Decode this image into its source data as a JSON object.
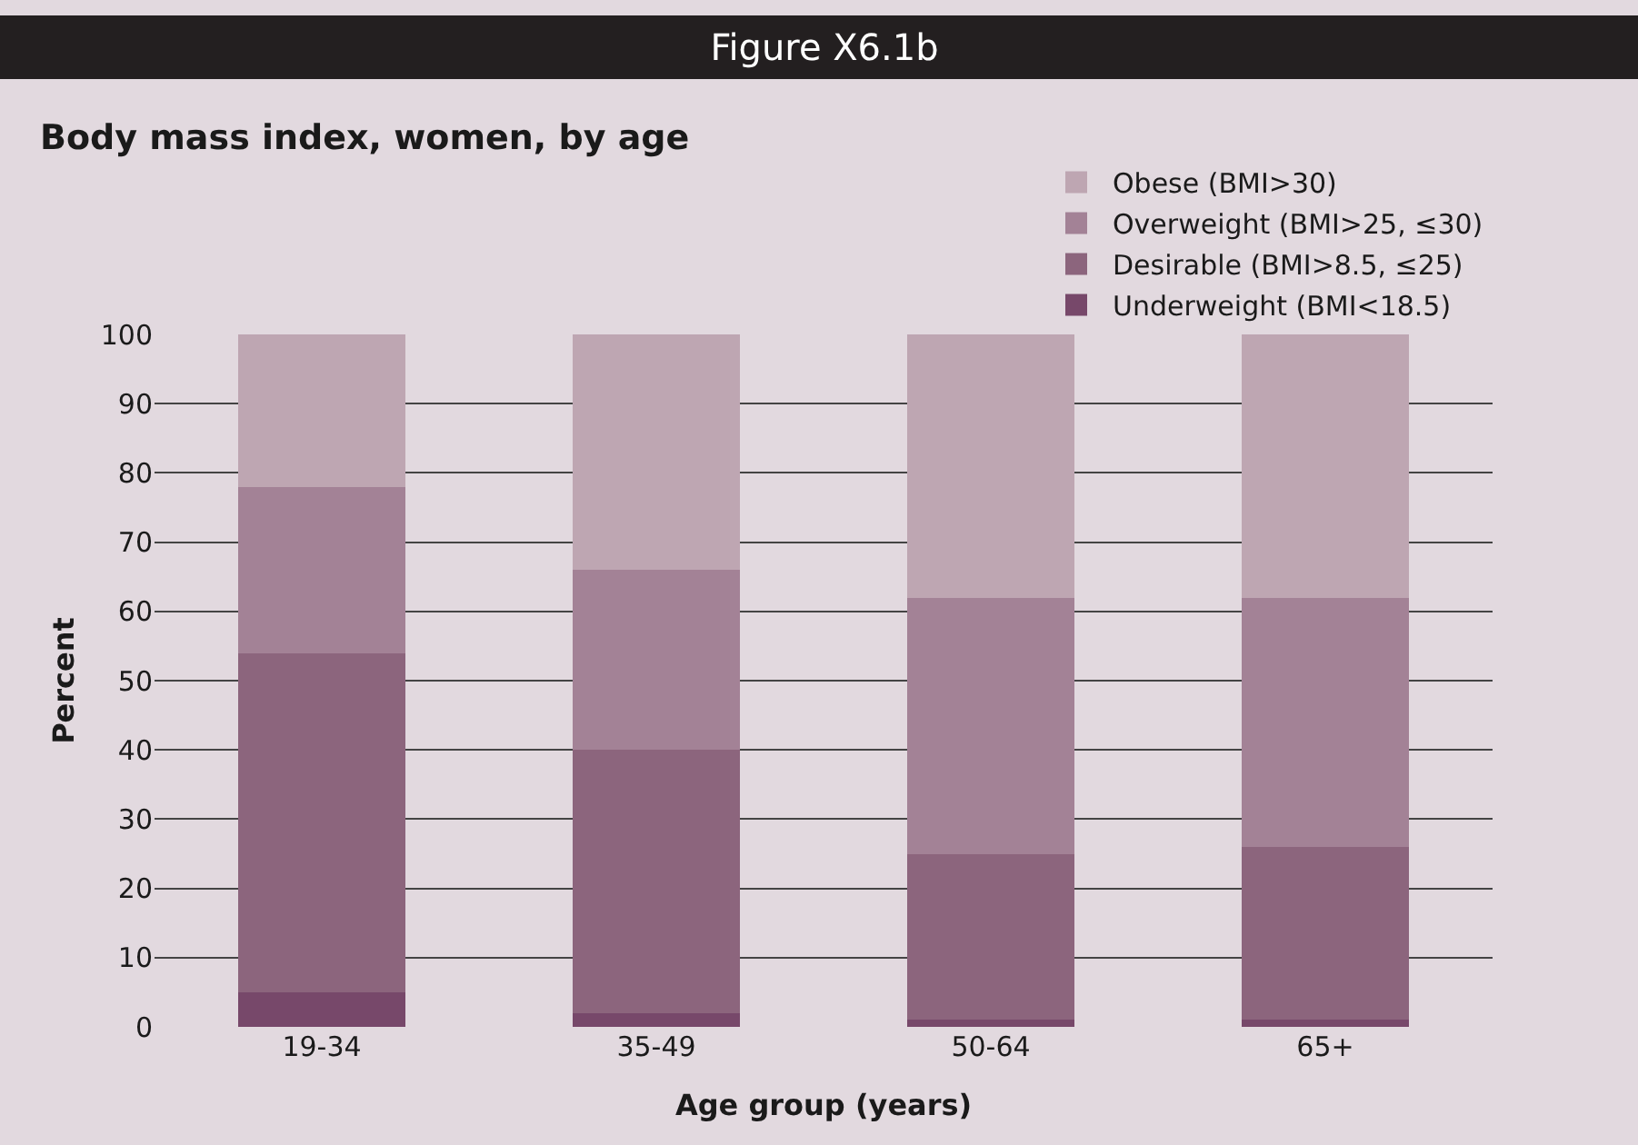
{
  "chart_data": {
    "type": "bar",
    "title": "Figure X6.1b",
    "subtitle": "Body mass index, women, by age",
    "xlabel": "Age group (years)",
    "ylabel": "Percent",
    "categories": [
      "19-34",
      "35-49",
      "50-64",
      "65+"
    ],
    "stacked": true,
    "series": [
      {
        "name": "Underweight (BMI<18.5)",
        "color": "#77486a",
        "values": [
          5,
          2,
          1,
          1
        ]
      },
      {
        "name": "Desirable (BMI>8.5, ≤25)",
        "color": "#8c657d",
        "values": [
          49,
          38,
          24,
          25
        ]
      },
      {
        "name": "Overweight (BMI>25, ≤30)",
        "color": "#a38296",
        "values": [
          24,
          26,
          37,
          36
        ]
      },
      {
        "name": "Obese (BMI>30)",
        "color": "#bea6b2",
        "values": [
          22,
          34,
          38,
          38
        ]
      }
    ],
    "ylim": [
      0,
      100
    ],
    "yticks": [
      0,
      10,
      20,
      30,
      40,
      50,
      60,
      70,
      80,
      90,
      100
    ],
    "grid": "y",
    "legend": "top right"
  }
}
